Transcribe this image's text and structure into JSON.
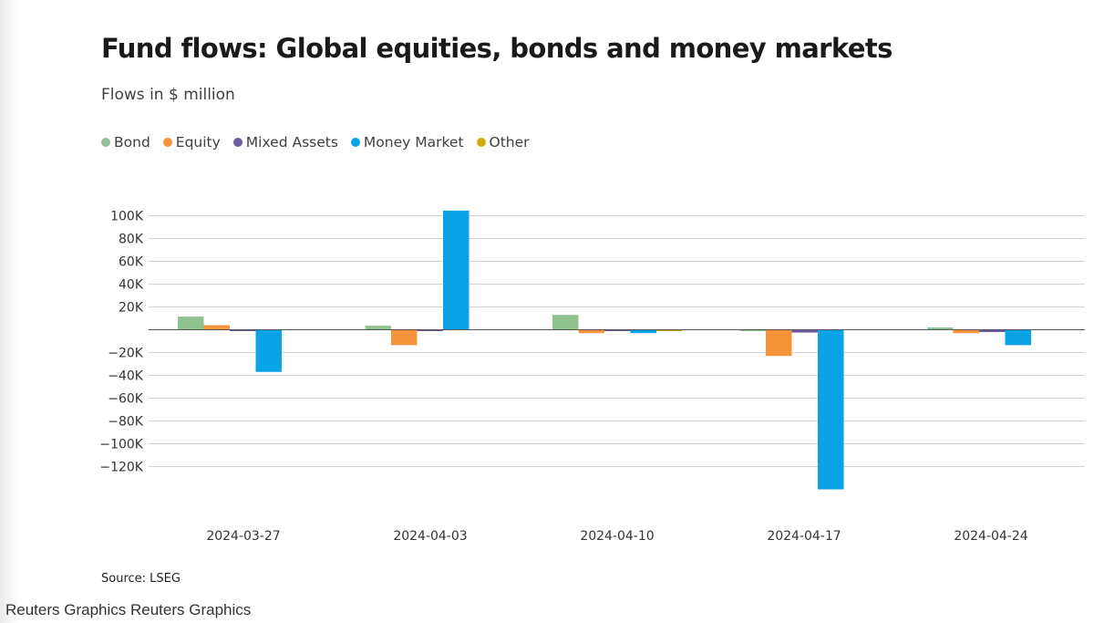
{
  "footer": {
    "credit": "Reuters Graphics Reuters Graphics"
  },
  "chart_data": {
    "type": "bar",
    "title": "Fund flows: Global equities, bonds and money markets",
    "subtitle": "Flows in $ million",
    "source": "Source: LSEG",
    "categories": [
      "2024-03-27",
      "2024-04-03",
      "2024-04-10",
      "2024-04-17",
      "2024-04-24"
    ],
    "series": [
      {
        "name": "Bond",
        "color": "#8fc28f",
        "values": [
          11500,
          3500,
          13000,
          -500,
          2000
        ]
      },
      {
        "name": "Equity",
        "color": "#f5943a",
        "values": [
          4000,
          -13500,
          -3000,
          -23000,
          -3000
        ]
      },
      {
        "name": "Mixed Assets",
        "color": "#6b5b9e",
        "values": [
          -500,
          -200,
          -200,
          -2500,
          -2000
        ]
      },
      {
        "name": "Money Market",
        "color": "#0aa3e6",
        "values": [
          -37000,
          104500,
          -3000,
          -140000,
          -13500
        ]
      },
      {
        "name": "Other",
        "color": "#d4a90c",
        "values": [
          0,
          0,
          -800,
          0,
          0
        ]
      }
    ],
    "yticks": [
      100000,
      80000,
      60000,
      40000,
      20000,
      0,
      -20000,
      -40000,
      -60000,
      -80000,
      -100000,
      -120000
    ],
    "yticklabels": [
      "100K",
      "80K",
      "60K",
      "40K",
      "20K",
      "",
      "−20K",
      "−40K",
      "−60K",
      "−80K",
      "−100K",
      "−120K"
    ],
    "ylim": [
      -140000,
      100000
    ],
    "grid": true,
    "legend_position": "top-left"
  }
}
